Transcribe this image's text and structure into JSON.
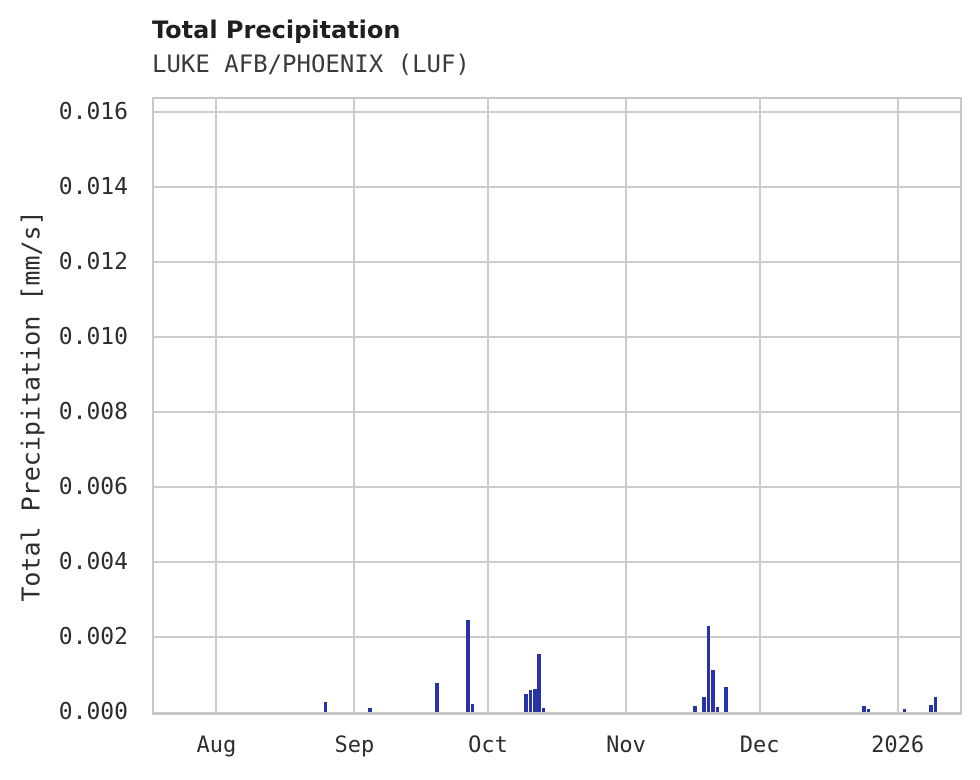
{
  "header": {
    "title": "Total Precipitation",
    "subtitle": "LUKE AFB/PHOENIX (LUF)"
  },
  "chart_data": {
    "type": "bar",
    "title": "Total Precipitation",
    "subtitle": "LUKE AFB/PHOENIX (LUF)",
    "xlabel": "",
    "ylabel": "Total Precipitation [mm/s]",
    "grid": true,
    "legend": "none",
    "x_start": "2025-07-18",
    "x_end": "2026-01-15",
    "ylim": [
      0,
      0.01636
    ],
    "yticks": [
      {
        "value": 0.0,
        "label": "0.000"
      },
      {
        "value": 0.002,
        "label": "0.002"
      },
      {
        "value": 0.004,
        "label": "0.004"
      },
      {
        "value": 0.006,
        "label": "0.006"
      },
      {
        "value": 0.008,
        "label": "0.008"
      },
      {
        "value": 0.01,
        "label": "0.010"
      },
      {
        "value": 0.012,
        "label": "0.012"
      },
      {
        "value": 0.014,
        "label": "0.014"
      },
      {
        "value": 0.016,
        "label": "0.016"
      }
    ],
    "xticks": [
      {
        "date": "2025-08-01",
        "label": "Aug"
      },
      {
        "date": "2025-09-01",
        "label": "Sep"
      },
      {
        "date": "2025-10-01",
        "label": "Oct"
      },
      {
        "date": "2025-11-01",
        "label": "Nov"
      },
      {
        "date": "2025-12-01",
        "label": "Dec"
      },
      {
        "date": "2026-01-01",
        "label": "2026"
      }
    ],
    "bar_width_days": 0.8,
    "points": [
      {
        "date": "2025-08-25",
        "value": 0.00027
      },
      {
        "date": "2025-09-04",
        "value": 0.00011
      },
      {
        "date": "2025-09-19",
        "value": 0.00077
      },
      {
        "date": "2025-09-26",
        "value": 0.00246
      },
      {
        "date": "2025-09-27",
        "value": 0.00021
      },
      {
        "date": "2025-10-09",
        "value": 0.00048
      },
      {
        "date": "2025-10-10",
        "value": 0.00058
      },
      {
        "date": "2025-10-11",
        "value": 0.00062
      },
      {
        "date": "2025-10-12",
        "value": 0.00155
      },
      {
        "date": "2025-10-13",
        "value": 0.00012
      },
      {
        "date": "2025-11-16",
        "value": 0.00016
      },
      {
        "date": "2025-11-18",
        "value": 0.0004
      },
      {
        "date": "2025-11-19",
        "value": 0.00229
      },
      {
        "date": "2025-11-20",
        "value": 0.00113
      },
      {
        "date": "2025-11-21",
        "value": 0.00013
      },
      {
        "date": "2025-11-23",
        "value": 0.00066
      },
      {
        "date": "2025-12-24",
        "value": 0.00016
      },
      {
        "date": "2025-12-25",
        "value": 8e-05
      },
      {
        "date": "2026-01-02",
        "value": 8e-05
      },
      {
        "date": "2026-01-08",
        "value": 0.00018
      },
      {
        "date": "2026-01-09",
        "value": 0.0004
      }
    ],
    "colors": {
      "bar": "#2733a6",
      "grid": "#cccccc",
      "spine": "#c8c8c8",
      "title_text": "#1f1f1f",
      "tick_text": "#2d2d2d",
      "background": "#ffffff"
    }
  }
}
